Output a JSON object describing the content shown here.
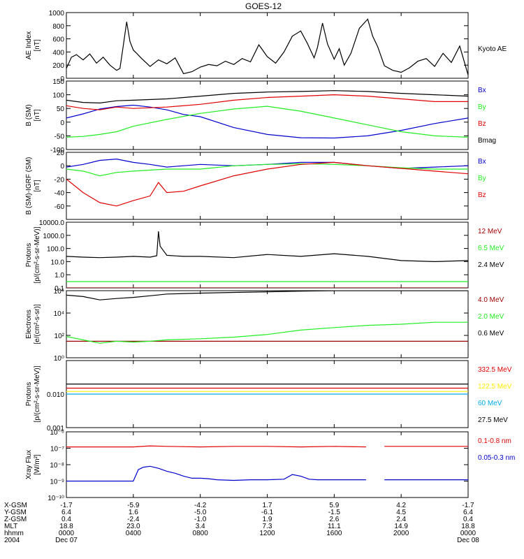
{
  "title": "GOES-12",
  "colors": {
    "black": "#000000",
    "red": "#e00000",
    "green": "#22ee22",
    "blue": "#0000cc",
    "darkred": "#a00000",
    "yellow": "#ffee00",
    "cyan": "#00aaee"
  },
  "chart_data": [
    {
      "type": "line",
      "ylabel": [
        "AE Index",
        "[nT]"
      ],
      "ylim": [
        0,
        1000
      ],
      "y_ticks": [
        {
          "v": 0,
          "label": "0"
        },
        {
          "v": 200,
          "label": "200"
        },
        {
          "v": 400,
          "label": "400"
        },
        {
          "v": 600,
          "label": "600"
        },
        {
          "v": 800,
          "label": "800"
        },
        {
          "v": 1000,
          "label": "1000"
        }
      ],
      "series": [
        {
          "name": "Kyoto AE",
          "color": "black",
          "x": [
            0,
            0.3,
            0.6,
            1,
            1.4,
            1.8,
            2.2,
            2.6,
            3,
            3.2,
            3.4,
            3.6,
            3.8,
            4,
            4.2,
            4.5,
            5,
            5.5,
            6,
            6.5,
            7,
            7.5,
            8,
            8.5,
            9,
            9.5,
            10,
            10.5,
            11,
            11.5,
            12,
            12.5,
            13,
            13.5,
            14,
            14.4,
            14.8,
            15,
            15.3,
            15.6,
            16,
            16.3,
            16.6,
            17,
            17.5,
            18,
            18.3,
            18.6,
            19,
            19.5,
            20,
            20.5,
            21,
            21.5,
            22,
            22.5,
            23,
            23.5,
            24
          ],
          "y": [
            150,
            320,
            360,
            280,
            370,
            230,
            320,
            200,
            120,
            150,
            500,
            860,
            560,
            430,
            380,
            300,
            180,
            280,
            220,
            310,
            70,
            100,
            170,
            210,
            190,
            260,
            210,
            300,
            250,
            510,
            330,
            230,
            400,
            640,
            720,
            530,
            310,
            470,
            840,
            520,
            290,
            450,
            200,
            380,
            760,
            900,
            640,
            480,
            190,
            120,
            90,
            160,
            260,
            300,
            180,
            380,
            240,
            490,
            50
          ]
        }
      ],
      "legend": [
        "Kyoto AE"
      ]
    },
    {
      "type": "line",
      "ylabel": [
        "B (SM)",
        "[nT]"
      ],
      "ylim": [
        -100,
        150
      ],
      "y_ticks": [
        {
          "v": -100,
          "label": "-100"
        },
        {
          "v": -50,
          "label": "-50"
        },
        {
          "v": 0,
          "label": "0"
        },
        {
          "v": 50,
          "label": "50"
        },
        {
          "v": 100,
          "label": "100"
        },
        {
          "v": 150,
          "label": "150"
        }
      ],
      "series": [
        {
          "name": "Bx",
          "color": "blue",
          "x": [
            0,
            1,
            2,
            3,
            4,
            5,
            6,
            7,
            8,
            10,
            12,
            14,
            16,
            18,
            20,
            22,
            24
          ],
          "y": [
            15,
            30,
            48,
            57,
            62,
            55,
            45,
            28,
            20,
            -20,
            -45,
            -57,
            -58,
            -50,
            -30,
            -5,
            15
          ]
        },
        {
          "name": "By",
          "color": "green",
          "x": [
            0,
            1,
            2,
            3,
            4,
            6,
            8,
            10,
            12,
            14,
            16,
            18,
            20,
            22,
            24
          ],
          "y": [
            -55,
            -52,
            -45,
            -35,
            -15,
            10,
            32,
            48,
            58,
            40,
            15,
            -10,
            -35,
            -50,
            -55
          ]
        },
        {
          "name": "Bz",
          "color": "red",
          "x": [
            0,
            1,
            2,
            3,
            4,
            6,
            8,
            10,
            12,
            14,
            16,
            18,
            20,
            22,
            24
          ],
          "y": [
            60,
            50,
            45,
            55,
            50,
            55,
            65,
            80,
            90,
            95,
            100,
            95,
            85,
            75,
            75
          ]
        },
        {
          "name": "Bmag",
          "color": "black",
          "x": [
            0,
            1,
            2,
            3,
            4,
            6,
            8,
            10,
            12,
            14,
            16,
            18,
            20,
            22,
            24
          ],
          "y": [
            80,
            72,
            70,
            78,
            80,
            85,
            95,
            105,
            110,
            112,
            115,
            112,
            105,
            100,
            95
          ]
        }
      ],
      "legend": [
        "Bx",
        "By",
        "Bz",
        "Bmag"
      ]
    },
    {
      "type": "line",
      "ylabel": [
        "B (SM)-IGRF (SM)",
        "[nT]"
      ],
      "ylim": [
        -80,
        20
      ],
      "y_ticks": [
        {
          "v": -60,
          "label": "-60"
        },
        {
          "v": -40,
          "label": "-40"
        },
        {
          "v": -20,
          "label": "-20"
        },
        {
          "v": 0,
          "label": "0"
        },
        {
          "v": 20,
          "label": "20"
        }
      ],
      "series": [
        {
          "name": "Bx",
          "color": "blue",
          "x": [
            0,
            1,
            2,
            3,
            4,
            5,
            6,
            7,
            8,
            10,
            12,
            14,
            16,
            18,
            20,
            22,
            24
          ],
          "y": [
            -2,
            2,
            8,
            10,
            5,
            2,
            -2,
            0,
            2,
            0,
            2,
            5,
            5,
            0,
            -4,
            -2,
            0
          ]
        },
        {
          "name": "By",
          "color": "green",
          "x": [
            0,
            1,
            2,
            3,
            4,
            6,
            8,
            10,
            12,
            14,
            16,
            18,
            20,
            22,
            24
          ],
          "y": [
            -5,
            -8,
            -15,
            -10,
            -8,
            -5,
            -5,
            0,
            2,
            3,
            2,
            0,
            -3,
            -5,
            -5
          ]
        },
        {
          "name": "Bz",
          "color": "red",
          "x": [
            0,
            1,
            2,
            3,
            4,
            5,
            5.5,
            6,
            7,
            8,
            10,
            12,
            14,
            16,
            18,
            20,
            22,
            24
          ],
          "y": [
            -20,
            -40,
            -55,
            -60,
            -52,
            -45,
            -25,
            -40,
            -38,
            -30,
            -15,
            -5,
            2,
            5,
            0,
            -4,
            -8,
            -12
          ]
        }
      ],
      "legend": [
        "Bx",
        "By",
        "Bz"
      ]
    },
    {
      "type": "line",
      "yscale": "log",
      "ylabel": [
        "Protons",
        "[p/(cm²-s-sr-MeV)]"
      ],
      "ylim": [
        0.1,
        10000
      ],
      "y_ticks": [
        {
          "v": 0.1,
          "label": "0.1"
        },
        {
          "v": 1,
          "label": "1.0"
        },
        {
          "v": 10,
          "label": "10.0"
        },
        {
          "v": 100,
          "label": "100.0"
        },
        {
          "v": 1000,
          "label": "1000.0"
        },
        {
          "v": 10000,
          "label": "10000.0"
        }
      ],
      "series": [
        {
          "name": "12 MeV",
          "color": "darkred",
          "x": [
            0,
            24
          ],
          "y": [
            0.1,
            0.1
          ]
        },
        {
          "name": "6.5 MeV",
          "color": "green",
          "x": [
            0,
            24
          ],
          "y": [
            0.3,
            0.3
          ]
        },
        {
          "name": "2.4 MeV",
          "color": "black",
          "x": [
            0,
            1,
            2,
            3,
            4,
            5,
            5.4,
            5.5,
            5.6,
            6,
            7,
            8,
            10,
            12,
            14,
            16,
            18,
            20,
            22,
            24
          ],
          "y": [
            25,
            22,
            20,
            22,
            25,
            22,
            28,
            2000,
            150,
            30,
            25,
            25,
            20,
            35,
            25,
            40,
            25,
            12,
            10,
            12
          ]
        }
      ],
      "legend": [
        "12 MeV",
        "6.5 MeV",
        "2.4 MeV"
      ]
    },
    {
      "type": "line",
      "yscale": "log",
      "ylabel": [
        "Electrons",
        "[e/(cm²-s-sr)]"
      ],
      "ylim": [
        1,
        1000000
      ],
      "y_ticks": [
        {
          "v": 1,
          "label": "10⁰"
        },
        {
          "v": 100,
          "label": "10²"
        },
        {
          "v": 10000,
          "label": "10⁴"
        },
        {
          "v": 1000000,
          "label": "10⁶"
        }
      ],
      "series": [
        {
          "name": "4.0 MeV",
          "color": "darkred",
          "x": [
            0,
            24
          ],
          "y": [
            30,
            30
          ]
        },
        {
          "name": "2.0 MeV",
          "color": "green",
          "x": [
            0,
            1,
            2,
            3,
            4,
            5,
            6,
            8,
            10,
            12,
            14,
            16,
            18,
            20,
            22,
            24
          ],
          "y": [
            80,
            40,
            20,
            30,
            25,
            30,
            40,
            50,
            70,
            120,
            300,
            500,
            800,
            1000,
            1500,
            1500
          ]
        },
        {
          "name": "0.6 MeV",
          "color": "black",
          "x": [
            0,
            1,
            2,
            3,
            4,
            5,
            6,
            8,
            10,
            12,
            14,
            16,
            18,
            20,
            22,
            24
          ],
          "y": [
            400000,
            300000,
            150000,
            200000,
            250000,
            350000,
            500000,
            600000,
            700000,
            800000,
            900000,
            1000000,
            1000000,
            1100000,
            1100000,
            1100000
          ]
        }
      ],
      "legend": [
        "4.0 MeV",
        "2.0 MeV",
        "0.6 MeV"
      ]
    },
    {
      "type": "line",
      "yscale": "log",
      "ylabel": [
        "Protons",
        "[p/(cm²-s-sr-MeV)]"
      ],
      "ylim": [
        0.001,
        0.1
      ],
      "y_ticks": [
        {
          "v": 0.001,
          "label": "0.001"
        },
        {
          "v": 0.01,
          "label": "0.010"
        }
      ],
      "series": [
        {
          "name": "332.5 MeV",
          "color": "red",
          "x": [
            0,
            24
          ],
          "y": [
            0.015,
            0.015
          ]
        },
        {
          "name": "122.5 MeV",
          "color": "yellow",
          "x": [
            0,
            24
          ],
          "y": [
            0.012,
            0.012
          ]
        },
        {
          "name": "60 MeV",
          "color": "cyan",
          "x": [
            0,
            24
          ],
          "y": [
            0.01,
            0.01
          ]
        },
        {
          "name": "27.5 MeV",
          "color": "black",
          "x": [
            0,
            24
          ],
          "y": [
            0.02,
            0.02
          ]
        }
      ],
      "legend": [
        "332.5 MeV",
        "122.5 MeV",
        "60 MeV",
        "27.5 MeV"
      ]
    },
    {
      "type": "line",
      "yscale": "log",
      "ylabel": [
        "Xray Flux",
        "[W/m²]"
      ],
      "ylim": [
        1e-10,
        1e-06
      ],
      "y_ticks": [
        {
          "v": 1e-10,
          "label": "10⁻¹⁰"
        },
        {
          "v": 1e-09,
          "label": "10⁻⁹"
        },
        {
          "v": 1e-08,
          "label": "10⁻⁸"
        },
        {
          "v": 1e-07,
          "label": "10⁻⁷"
        },
        {
          "v": 1e-06,
          "label": "10⁻⁶"
        }
      ],
      "series": [
        {
          "name": "0.1-0.8 nm",
          "color": "red",
          "x": [
            0,
            4,
            5,
            6,
            8,
            10,
            12,
            14,
            16,
            17.9
          ],
          "y": [
            1.2e-07,
            1.2e-07,
            1.4e-07,
            1.3e-07,
            1.2e-07,
            1.3e-07,
            1.3e-07,
            1.2e-07,
            1.3e-07,
            1.2e-07
          ],
          "segment2": {
            "x": [
              19,
              20,
              22,
              24
            ],
            "y": [
              1.3e-07,
              1.3e-07,
              1.3e-07,
              1.3e-07
            ]
          }
        },
        {
          "name": "0.05-0.3 nm",
          "color": "blue",
          "x": [
            0,
            4,
            4.3,
            4.6,
            5,
            5.5,
            6,
            6.5,
            7,
            7.5,
            8,
            8.5,
            9,
            10,
            11,
            12,
            13,
            13.5,
            14,
            14.5,
            15,
            16,
            17.9
          ],
          "y": [
            1e-09,
            1e-09,
            5e-09,
            7e-09,
            8e-09,
            6e-09,
            4e-09,
            3e-09,
            2e-09,
            1.5e-09,
            1.5e-09,
            1.4e-09,
            1.2e-09,
            1.1e-09,
            1.2e-09,
            1.2e-09,
            1.3e-09,
            2.5e-09,
            2e-09,
            1.3e-09,
            1.2e-09,
            1.2e-09,
            1.2e-09
          ],
          "segment2": {
            "x": [
              19,
              20,
              22,
              24
            ],
            "y": [
              1.2e-09,
              1.2e-09,
              1.2e-09,
              1.2e-09
            ]
          }
        }
      ],
      "legend": [
        "0.1-0.8 nm",
        "0.05-0.3 nm"
      ]
    }
  ],
  "x_axis": {
    "row_labels": [
      "X-GSM",
      "Y-GSM",
      "Z-GSM",
      "MLT",
      "hhmm",
      "2004"
    ],
    "ticks": [
      {
        "hours": 0,
        "values": [
          "-1.7",
          "6.4",
          "0.4",
          "18.8",
          "0000",
          "Dec 07"
        ]
      },
      {
        "hours": 4,
        "values": [
          "-5.9",
          "1.6",
          "-2.4",
          "23.0",
          "0400",
          ""
        ]
      },
      {
        "hours": 8,
        "values": [
          "-4.2",
          "-5.0",
          "-1.0",
          "3.4",
          "0800",
          ""
        ]
      },
      {
        "hours": 12,
        "values": [
          "1.7",
          "-6.1",
          "1.9",
          "7.3",
          "1200",
          ""
        ]
      },
      {
        "hours": 16,
        "values": [
          "5.9",
          "-1.5",
          "2.6",
          "11.1",
          "1600",
          ""
        ]
      },
      {
        "hours": 20,
        "values": [
          "4.2",
          "4.5",
          "2.4",
          "14.9",
          "2000",
          ""
        ]
      },
      {
        "hours": 24,
        "values": [
          "-1.7",
          "6.4",
          "0.4",
          "18.8",
          "0000",
          "Dec 08"
        ]
      }
    ]
  }
}
